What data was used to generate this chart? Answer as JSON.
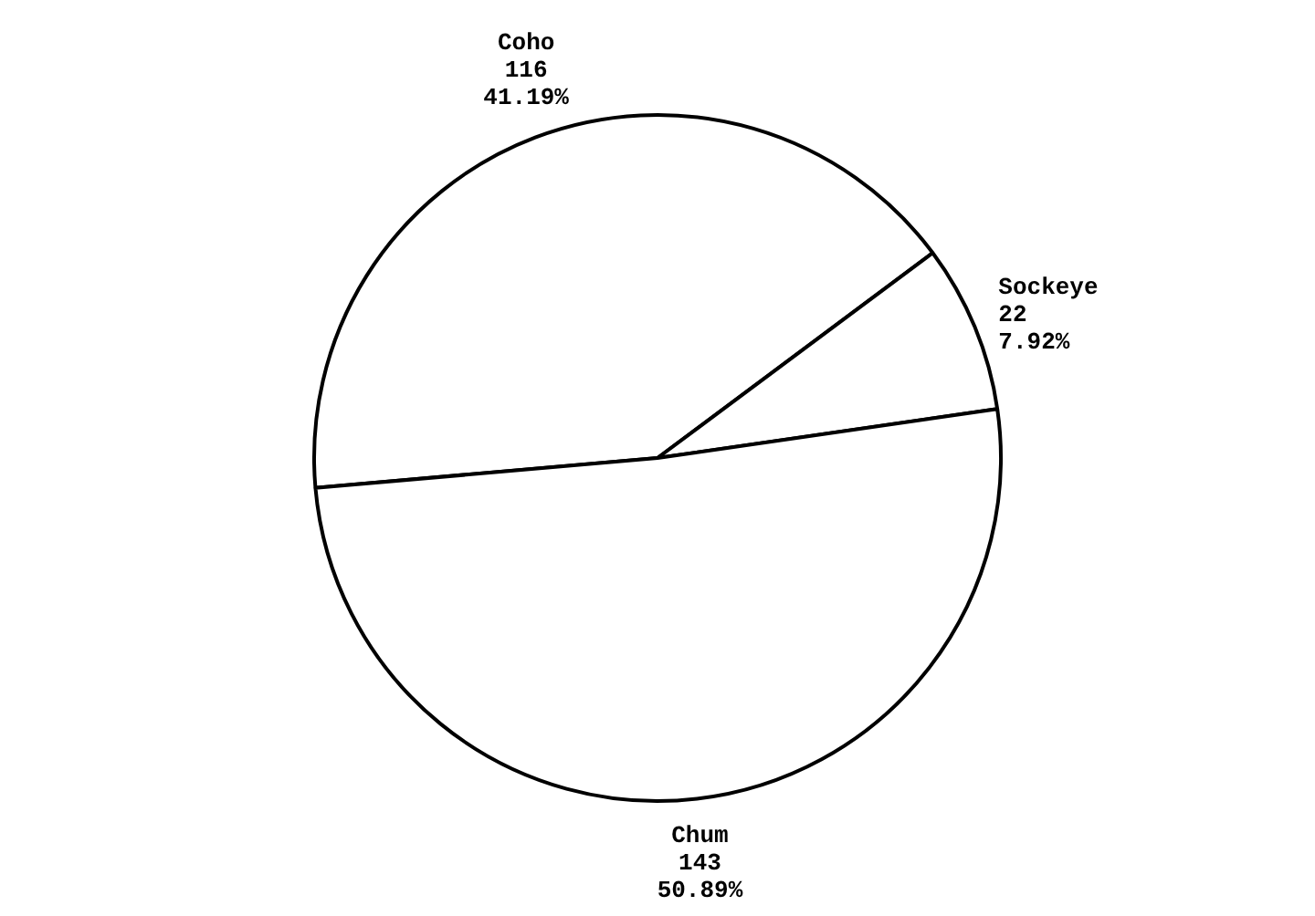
{
  "chart_data": {
    "type": "pie",
    "categories": [
      "Coho",
      "Sockeye",
      "Chum"
    ],
    "values": [
      41.19,
      7.92,
      50.89
    ],
    "colors": [
      "#ffffff",
      "#ffffff",
      "#ffffff"
    ],
    "value_labels": [
      "116\n41.19%",
      "22\n7.92%",
      "143\n50.89%"
    ],
    "legend": false
  }
}
